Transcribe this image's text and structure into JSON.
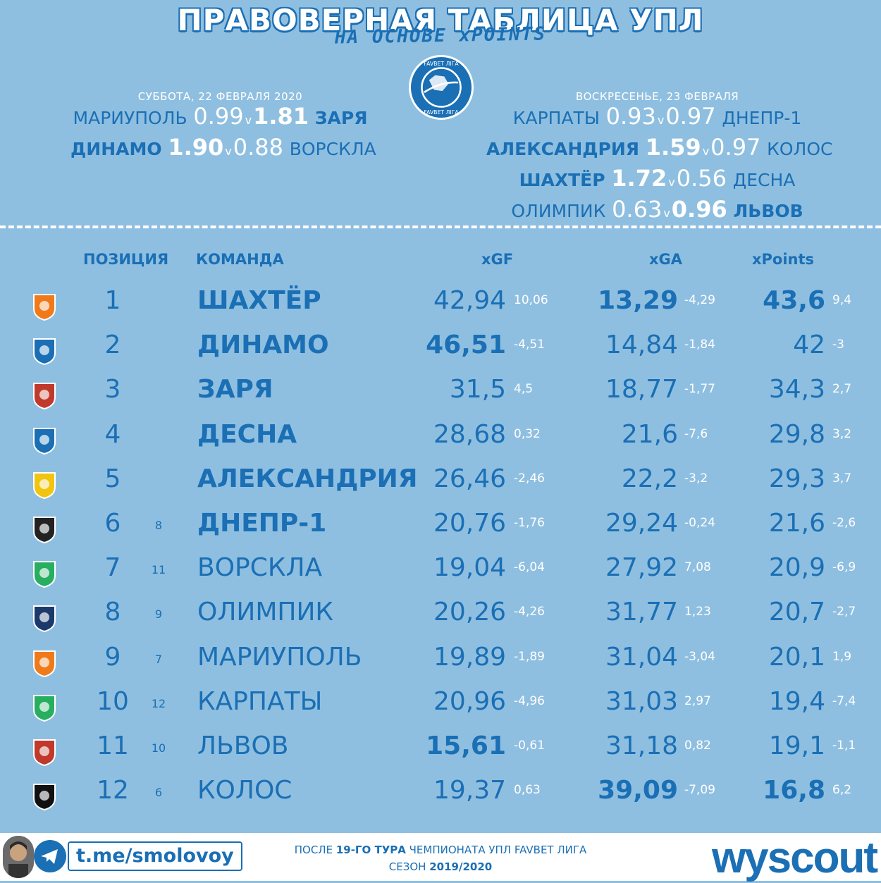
{
  "header": {
    "title": "ПРАВОВЕРНАЯ ТАБЛИЦА УПЛ",
    "subtitle": "НА ОСНОВЕ xPOINTS"
  },
  "logo": {
    "icon": "favbet-liga-ball-icon"
  },
  "saturday": {
    "date": "СУББОТА, 22 ФЕВРАЛЯ 2020",
    "matches": [
      {
        "home": "МАРИУПОЛЬ",
        "home_xg": "0.99",
        "v": "v",
        "away_xg": "1.81",
        "away": "ЗАРЯ"
      },
      {
        "home": "ДИНАМО",
        "home_xg": "1.90",
        "v": "v",
        "away_xg": "0.88",
        "away": "ВОРСКЛА"
      }
    ]
  },
  "sunday": {
    "date": "ВОСКРЕСЕНЬЕ, 23 ФЕВРАЛЯ",
    "matches": [
      {
        "home": "КАРПАТЫ",
        "home_xg": "0.93",
        "v": "v",
        "away_xg": "0.97",
        "away": "ДНЕПР-1"
      },
      {
        "home": "АЛЕКСАНДРИЯ",
        "home_xg": "1.59",
        "v": "v",
        "away_xg": "0.97",
        "away": "КОЛОС"
      },
      {
        "home": "ШАХТЁР",
        "home_xg": "1.72",
        "v": "v",
        "away_xg": "0.56",
        "away": "ДЕСНА"
      },
      {
        "home": "ОЛИМПИК",
        "home_xg": "0.63",
        "v": "v",
        "away_xg": "0.96",
        "away": "ЛЬВОВ"
      }
    ]
  },
  "table": {
    "headers": {
      "position": "ПОЗИЦИЯ",
      "team": "КОМАНДА",
      "xgf": "xGF",
      "xga": "xGA",
      "xpoints": "xPoints"
    },
    "rows": [
      {
        "pos": "1",
        "prev": "",
        "team": "ШАХТЁР",
        "xgf": "42,94",
        "xgf_d": "10,06",
        "xga": "13,29",
        "xga_d": "-4,29",
        "xp": "43,6",
        "xp_d": "9,4"
      },
      {
        "pos": "2",
        "prev": "",
        "team": "ДИНАМО",
        "xgf": "46,51",
        "xgf_d": "-4,51",
        "xga": "14,84",
        "xga_d": "-1,84",
        "xp": "42",
        "xp_d": "-3"
      },
      {
        "pos": "3",
        "prev": "",
        "team": "ЗАРЯ",
        "xgf": "31,5",
        "xgf_d": "4,5",
        "xga": "18,77",
        "xga_d": "-1,77",
        "xp": "34,3",
        "xp_d": "2,7"
      },
      {
        "pos": "4",
        "prev": "",
        "team": "ДЕСНА",
        "xgf": "28,68",
        "xgf_d": "0,32",
        "xga": "21,6",
        "xga_d": "-7,6",
        "xp": "29,8",
        "xp_d": "3,2"
      },
      {
        "pos": "5",
        "prev": "",
        "team": "АЛЕКСАНДРИЯ",
        "xgf": "26,46",
        "xgf_d": "-2,46",
        "xga": "22,2",
        "xga_d": "-3,2",
        "xp": "29,3",
        "xp_d": "3,7"
      },
      {
        "pos": "6",
        "prev": "8",
        "team": "ДНЕПР-1",
        "xgf": "20,76",
        "xgf_d": "-1,76",
        "xga": "29,24",
        "xga_d": "-0,24",
        "xp": "21,6",
        "xp_d": "-2,6"
      },
      {
        "pos": "7",
        "prev": "11",
        "team": "ВОРСКЛА",
        "xgf": "19,04",
        "xgf_d": "-6,04",
        "xga": "27,92",
        "xga_d": "7,08",
        "xp": "20,9",
        "xp_d": "-6,9"
      },
      {
        "pos": "8",
        "prev": "9",
        "team": "ОЛИМПИК",
        "xgf": "20,26",
        "xgf_d": "-4,26",
        "xga": "31,77",
        "xga_d": "1,23",
        "xp": "20,7",
        "xp_d": "-2,7"
      },
      {
        "pos": "9",
        "prev": "7",
        "team": "МАРИУПОЛЬ",
        "xgf": "19,89",
        "xgf_d": "-1,89",
        "xga": "31,04",
        "xga_d": "-3,04",
        "xp": "20,1",
        "xp_d": "1,9"
      },
      {
        "pos": "10",
        "prev": "12",
        "team": "КАРПАТЫ",
        "xgf": "20,96",
        "xgf_d": "-4,96",
        "xga": "31,03",
        "xga_d": "2,97",
        "xp": "19,4",
        "xp_d": "-7,4"
      },
      {
        "pos": "11",
        "prev": "10",
        "team": "ЛЬВОВ",
        "xgf": "15,61",
        "xgf_d": "-0,61",
        "xga": "31,18",
        "xga_d": "0,82",
        "xp": "19,1",
        "xp_d": "-1,1"
      },
      {
        "pos": "12",
        "prev": "6",
        "team": "КОЛОС",
        "xgf": "19,37",
        "xgf_d": "0,63",
        "xga": "39,09",
        "xga_d": "-7,09",
        "xp": "16,8",
        "xp_d": "6,2"
      }
    ]
  },
  "footer": {
    "handle": "t.me/smolovoy",
    "info_line1_pre": "ПОСЛЕ ",
    "info_line1_bold": "19-ГО ТУРА",
    "info_line1_post": " ЧЕМПИОНАТА УПЛ FAVBET ЛИГА",
    "info_line2_pre": "СЕЗОН ",
    "info_line2_bold": "2019/2020",
    "brand": "wyscout"
  },
  "colors": {
    "background": "#8fbfe0",
    "accent": "#1a6fb5",
    "text_light": "#ffffff"
  }
}
